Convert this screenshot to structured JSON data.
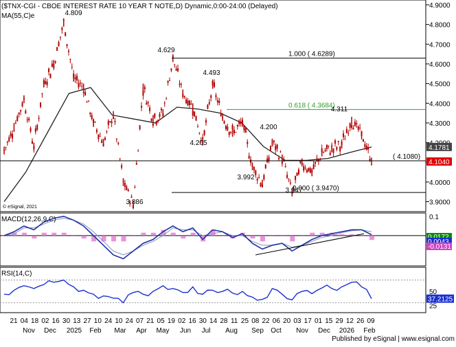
{
  "header": {
    "title": "($TNX-CGI - CBOE INTEREST RATE 10 YEAR T NOTE,D) Dynamic,0:00-24:00 (Delayed)",
    "ma_label": "MA(55,C)e",
    "copyright": "© eSignal, 2021"
  },
  "footer": {
    "published": "Published by eSignal | www.esignal.com"
  },
  "colors": {
    "candle": "#b00000",
    "ma": "#222222",
    "fib_line": "#000000",
    "fib_618": "#2e9e2e",
    "macd_line": "#1f2fa0",
    "macd_hist": "#e070d0",
    "rsi_line": "#1a2fd0",
    "price_tag": "#e00000",
    "ma_tag": "#444444",
    "macd_tag": "#0a8a0a",
    "rsi_tag": "#1a2fd0"
  },
  "chart_data": {
    "type": "candlestick",
    "price_axis": {
      "ylim": [
        3.86,
        4.9
      ],
      "ticks": [
        "4.9000",
        "4.8000",
        "4.7000",
        "4.6000",
        "4.5000",
        "4.4000",
        "4.3000",
        "4.2000",
        "4.1000",
        "4.0000",
        "3.9000"
      ]
    },
    "x_axis": {
      "day_ticks": [
        "21",
        "04",
        "18",
        "02",
        "16",
        "30",
        "13",
        "27",
        "10",
        "24",
        "10",
        "24",
        "07",
        "21",
        "05",
        "19",
        "02",
        "16",
        "30",
        "14",
        "28",
        "11",
        "25",
        "08",
        "22",
        "06",
        "20",
        "03",
        "17",
        "01",
        "15",
        "29",
        "12",
        "26",
        "09"
      ],
      "month_labels": [
        "Nov",
        "Dec",
        "2025",
        "Feb",
        "Mar",
        "Apr",
        "May",
        "Jun",
        "Jul",
        "Aug",
        "Sep",
        "Oct",
        "Nov",
        "Dec",
        "2026",
        "Feb"
      ]
    },
    "price_points": [
      {
        "label": "21 Oct",
        "value": 4.16
      },
      {
        "label": "01 Nov",
        "value": 4.28
      },
      {
        "label": "15 Nov",
        "value": 4.42
      },
      {
        "label": "04 Dec",
        "value": 4.18
      },
      {
        "label": "18 Dec",
        "value": 4.5
      },
      {
        "label": "03 Jan",
        "value": 4.6
      },
      {
        "label": "13 Jan",
        "value": 4.809
      },
      {
        "label": "27 Jan",
        "value": 4.53
      },
      {
        "label": "10 Feb",
        "value": 4.48
      },
      {
        "label": "24 Feb",
        "value": 4.3
      },
      {
        "label": "10 Mar",
        "value": 4.2
      },
      {
        "label": "24 Mar",
        "value": 4.34
      },
      {
        "label": "04 Apr",
        "value": 4.0
      },
      {
        "label": "07 Apr",
        "value": 3.886
      },
      {
        "label": "11 Apr",
        "value": 4.48
      },
      {
        "label": "21 Apr",
        "value": 4.32
      },
      {
        "label": "05 May",
        "value": 4.35
      },
      {
        "label": "19 May",
        "value": 4.629
      },
      {
        "label": "02 Jun",
        "value": 4.45
      },
      {
        "label": "16 Jun",
        "value": 4.38
      },
      {
        "label": "30 Jun",
        "value": 4.205
      },
      {
        "label": "14 Jul",
        "value": 4.493
      },
      {
        "label": "28 Jul",
        "value": 4.33
      },
      {
        "label": "11 Aug",
        "value": 4.25
      },
      {
        "label": "25 Aug",
        "value": 4.3
      },
      {
        "label": "08 Sep",
        "value": 4.08
      },
      {
        "label": "15 Sep",
        "value": 3.992
      },
      {
        "label": "25 Sep",
        "value": 4.2
      },
      {
        "label": "06 Oct",
        "value": 4.12
      },
      {
        "label": "20 Oct",
        "value": 3.947
      },
      {
        "label": "03 Nov",
        "value": 4.1
      },
      {
        "label": "17 Nov",
        "value": 4.05
      },
      {
        "label": "01 Dec",
        "value": 4.15
      },
      {
        "label": "15 Dec",
        "value": 4.17
      },
      {
        "label": "29 Dec",
        "value": 4.19
      },
      {
        "label": "12 Jan",
        "value": 4.311
      },
      {
        "label": "26 Jan",
        "value": 4.24
      },
      {
        "label": "09 Feb",
        "value": 4.104
      }
    ],
    "ma_points": [
      {
        "label": "21 Oct",
        "value": 3.9
      },
      {
        "label": "15 Nov",
        "value": 4.05
      },
      {
        "label": "18 Dec",
        "value": 4.25
      },
      {
        "label": "27 Jan",
        "value": 4.45
      },
      {
        "label": "24 Feb",
        "value": 4.48
      },
      {
        "label": "24 Mar",
        "value": 4.34
      },
      {
        "label": "07 Apr",
        "value": 4.32
      },
      {
        "label": "05 May",
        "value": 4.3
      },
      {
        "label": "02 Jun",
        "value": 4.38
      },
      {
        "label": "30 Jun",
        "value": 4.37
      },
      {
        "label": "28 Jul",
        "value": 4.35
      },
      {
        "label": "25 Aug",
        "value": 4.3
      },
      {
        "label": "22 Sep",
        "value": 4.18
      },
      {
        "label": "20 Oct",
        "value": 4.11
      },
      {
        "label": "17 Nov",
        "value": 4.11
      },
      {
        "label": "15 Dec",
        "value": 4.12
      },
      {
        "label": "12 Jan",
        "value": 4.15
      },
      {
        "label": "09 Feb",
        "value": 4.178
      }
    ],
    "annotations": [
      {
        "text": "4.809",
        "value": 4.809
      },
      {
        "text": "4.629",
        "value": 4.629
      },
      {
        "text": "4.493",
        "value": 4.493
      },
      {
        "text": "4.205",
        "value": 4.205
      },
      {
        "text": "4.200",
        "value": 4.2
      },
      {
        "text": "3.992",
        "value": 3.992
      },
      {
        "text": "3.947",
        "value": 3.947
      },
      {
        "text": "3.886",
        "value": 3.886
      },
      {
        "text": "4.311",
        "value": 4.311
      }
    ],
    "levels": [
      {
        "label": "1.000 ( 4.6289)",
        "value": 4.6289,
        "style": "fib"
      },
      {
        "label": "0.618 ( 4.3684)",
        "value": 4.3684,
        "style": "fib_618"
      },
      {
        "label": "0.000 ( 3.9470)",
        "value": 3.947,
        "style": "fib"
      },
      {
        "label": "( 4.1080)",
        "value": 4.108,
        "style": "fib"
      }
    ],
    "price_tags": [
      {
        "text": "4.1781",
        "value": 4.1781,
        "kind": "ma"
      },
      {
        "text": "4.1040",
        "value": 4.104,
        "kind": "price"
      }
    ],
    "macd": {
      "title": "MACD(12,26,9,C)",
      "ticks": [
        "0.1",
        "0"
      ],
      "ylim": [
        -0.15,
        0.11
      ],
      "macd_line": [
        0.0,
        0.02,
        0.05,
        0.03,
        0.07,
        0.09,
        0.1,
        0.08,
        0.05,
        0.0,
        -0.05,
        -0.1,
        -0.12,
        -0.08,
        -0.04,
        -0.02,
        0.02,
        0.05,
        0.02,
        0.04,
        -0.02,
        0.03,
        0.02,
        -0.01,
        0.01,
        -0.04,
        -0.07,
        -0.05,
        -0.04,
        -0.08,
        -0.05,
        -0.02,
        0.0,
        0.01,
        0.02,
        0.03,
        0.03,
        0.005
      ],
      "signal_line": [
        0.0,
        0.01,
        0.04,
        0.04,
        0.06,
        0.08,
        0.09,
        0.08,
        0.06,
        0.02,
        -0.03,
        -0.08,
        -0.1,
        -0.08,
        -0.05,
        -0.03,
        0.0,
        0.04,
        0.03,
        0.03,
        0.0,
        0.01,
        0.02,
        0.0,
        0.0,
        -0.03,
        -0.05,
        -0.05,
        -0.04,
        -0.06,
        -0.05,
        -0.03,
        -0.01,
        0.0,
        0.015,
        0.025,
        0.03,
        0.02
      ],
      "tags": [
        {
          "text": "0.0172",
          "value": 0.0172
        },
        {
          "text": "0.0043",
          "value": 0.0043
        },
        {
          "text": "-0.0131",
          "value": -0.0131
        }
      ]
    },
    "rsi": {
      "title": "RSI(14,C)",
      "ticks": [
        "50",
        "25"
      ],
      "ylim": [
        15,
        90
      ],
      "reference_lines": [
        70,
        30
      ],
      "values": [
        45,
        52,
        60,
        55,
        62,
        66,
        70,
        58,
        52,
        45,
        42,
        38,
        30,
        48,
        45,
        50,
        60,
        55,
        48,
        58,
        45,
        52,
        50,
        47,
        50,
        40,
        36,
        55,
        45,
        35,
        50,
        46,
        56,
        55,
        58,
        66,
        58,
        37.21
      ],
      "tag": {
        "text": "37.2125",
        "value": 37.2125
      }
    }
  }
}
